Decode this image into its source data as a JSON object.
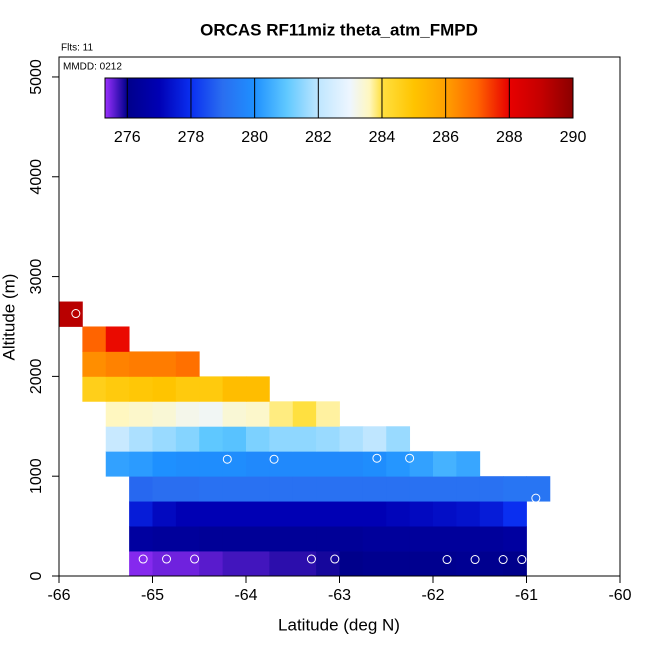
{
  "chart_data": {
    "type": "heatmap",
    "title": "ORCAS RF11miz theta_atm_FMPD",
    "annotations": [
      "Flts: 11",
      "MMDD: 0212"
    ],
    "x_label": "Latitude (deg N)",
    "y_label": "Altitude (m)",
    "xlim": [
      -66,
      -60
    ],
    "ylim": [
      0,
      5200
    ],
    "xticks": [
      -66,
      -65,
      -64,
      -63,
      -62,
      -61,
      -60
    ],
    "yticks": [
      0,
      1000,
      2000,
      3000,
      4000,
      5000
    ],
    "x_bins": [
      -66,
      -65.75,
      -65.5,
      -65.25,
      -65,
      -64.75,
      -64.5,
      -64.25,
      -64,
      -63.75,
      -63.5,
      -63.25,
      -63,
      -62.75,
      -62.5,
      -62.25,
      -62,
      -61.75,
      -61.5,
      -61.25,
      -61,
      -60.75,
      -60.5,
      -60.25,
      -60
    ],
    "y_bins": [
      0,
      250,
      500,
      750,
      1000,
      1250,
      1500,
      1750,
      2000,
      2250,
      2500,
      2750
    ],
    "values": [
      [
        null,
        null,
        null,
        275.4,
        275.5,
        275.5,
        275.6,
        275.7,
        275.7,
        275.8,
        275.8,
        275.9,
        276.0,
        276.1,
        276.1,
        276.1,
        276.1,
        276.2,
        276.1,
        276.0,
        null,
        null,
        null,
        null
      ],
      [
        null,
        null,
        null,
        276.5,
        276.4,
        276.4,
        276.3,
        276.3,
        276.3,
        276.3,
        276.3,
        276.3,
        276.3,
        276.4,
        276.4,
        276.4,
        276.4,
        276.4,
        276.4,
        276.5,
        null,
        null,
        null,
        null
      ],
      [
        null,
        null,
        null,
        277.6,
        277.2,
        277.0,
        277.0,
        277.0,
        277.0,
        277.0,
        277.0,
        277.0,
        277.0,
        277.0,
        277.1,
        277.2,
        277.3,
        277.4,
        277.6,
        278.0,
        null,
        null,
        null,
        null
      ],
      [
        null,
        null,
        null,
        278.9,
        279.0,
        279.0,
        279.1,
        279.1,
        279.1,
        279.1,
        279.1,
        279.1,
        279.1,
        279.1,
        279.1,
        279.1,
        279.1,
        279.1,
        279.1,
        279.2,
        279.2,
        null,
        null,
        null
      ],
      [
        null,
        null,
        280.3,
        280.2,
        280.0,
        279.9,
        279.9,
        279.9,
        279.8,
        279.8,
        279.8,
        279.8,
        279.8,
        279.9,
        280.1,
        280.3,
        280.6,
        280.4,
        null,
        null,
        null,
        null,
        null,
        null
      ],
      [
        null,
        null,
        282.2,
        281.8,
        281.6,
        281.4,
        281.0,
        280.9,
        281.3,
        281.5,
        281.5,
        281.6,
        281.8,
        282.0,
        281.6,
        null,
        null,
        null,
        null,
        null,
        null,
        null,
        null,
        null
      ],
      [
        null,
        null,
        283.6,
        283.5,
        283.4,
        283.2,
        283.1,
        283.4,
        283.5,
        283.8,
        284.0,
        283.7,
        null,
        null,
        null,
        null,
        null,
        null,
        null,
        null,
        null,
        null,
        null,
        null
      ],
      [
        null,
        284.6,
        284.8,
        284.9,
        285.0,
        284.8,
        284.8,
        285.2,
        285.2,
        null,
        null,
        null,
        null,
        null,
        null,
        null,
        null,
        null,
        null,
        null,
        null,
        null,
        null,
        null
      ],
      [
        null,
        286.3,
        286.5,
        286.6,
        286.6,
        286.8,
        null,
        null,
        null,
        null,
        null,
        null,
        null,
        null,
        null,
        null,
        null,
        null,
        null,
        null,
        null,
        null,
        null,
        null
      ],
      [
        null,
        287.0,
        287.9,
        null,
        null,
        null,
        null,
        null,
        null,
        null,
        null,
        null,
        null,
        null,
        null,
        null,
        null,
        null,
        null,
        null,
        null,
        null,
        null,
        null
      ],
      [
        289.2,
        null,
        null,
        null,
        null,
        null,
        null,
        null,
        null,
        null,
        null,
        null,
        null,
        null,
        null,
        null,
        null,
        null,
        null,
        null,
        null,
        null,
        null,
        null
      ]
    ],
    "points": {
      "color": "#ffffff",
      "x": [
        -65.1,
        -64.85,
        -64.55,
        -63.3,
        -63.05,
        -61.85,
        -61.55,
        -61.25,
        -61.05,
        -64.2,
        -63.7,
        -62.6,
        -62.25,
        -60.9,
        -65.82
      ],
      "y": [
        170,
        170,
        170,
        170,
        170,
        165,
        165,
        165,
        165,
        1170,
        1170,
        1180,
        1180,
        780,
        2630
      ]
    },
    "colorbar": {
      "clim": [
        275.3,
        290
      ],
      "ticks": [
        276,
        278,
        280,
        282,
        284,
        286,
        288,
        290
      ],
      "colormap": [
        [
          275.3,
          "#9b30ff"
        ],
        [
          276,
          "#00008b"
        ],
        [
          277,
          "#0000b4"
        ],
        [
          278,
          "#0a2ff0"
        ],
        [
          279,
          "#2a6ef0"
        ],
        [
          280,
          "#1e90ff"
        ],
        [
          281,
          "#5fc8ff"
        ],
        [
          282,
          "#bfe6ff"
        ],
        [
          283,
          "#eef6ff"
        ],
        [
          283.6,
          "#fff7c0"
        ],
        [
          284,
          "#ffe040"
        ],
        [
          285,
          "#ffc400"
        ],
        [
          286,
          "#ffa000"
        ],
        [
          287,
          "#ff6400"
        ],
        [
          288,
          "#e80000"
        ],
        [
          289,
          "#c40000"
        ],
        [
          290,
          "#8b0000"
        ]
      ]
    }
  }
}
